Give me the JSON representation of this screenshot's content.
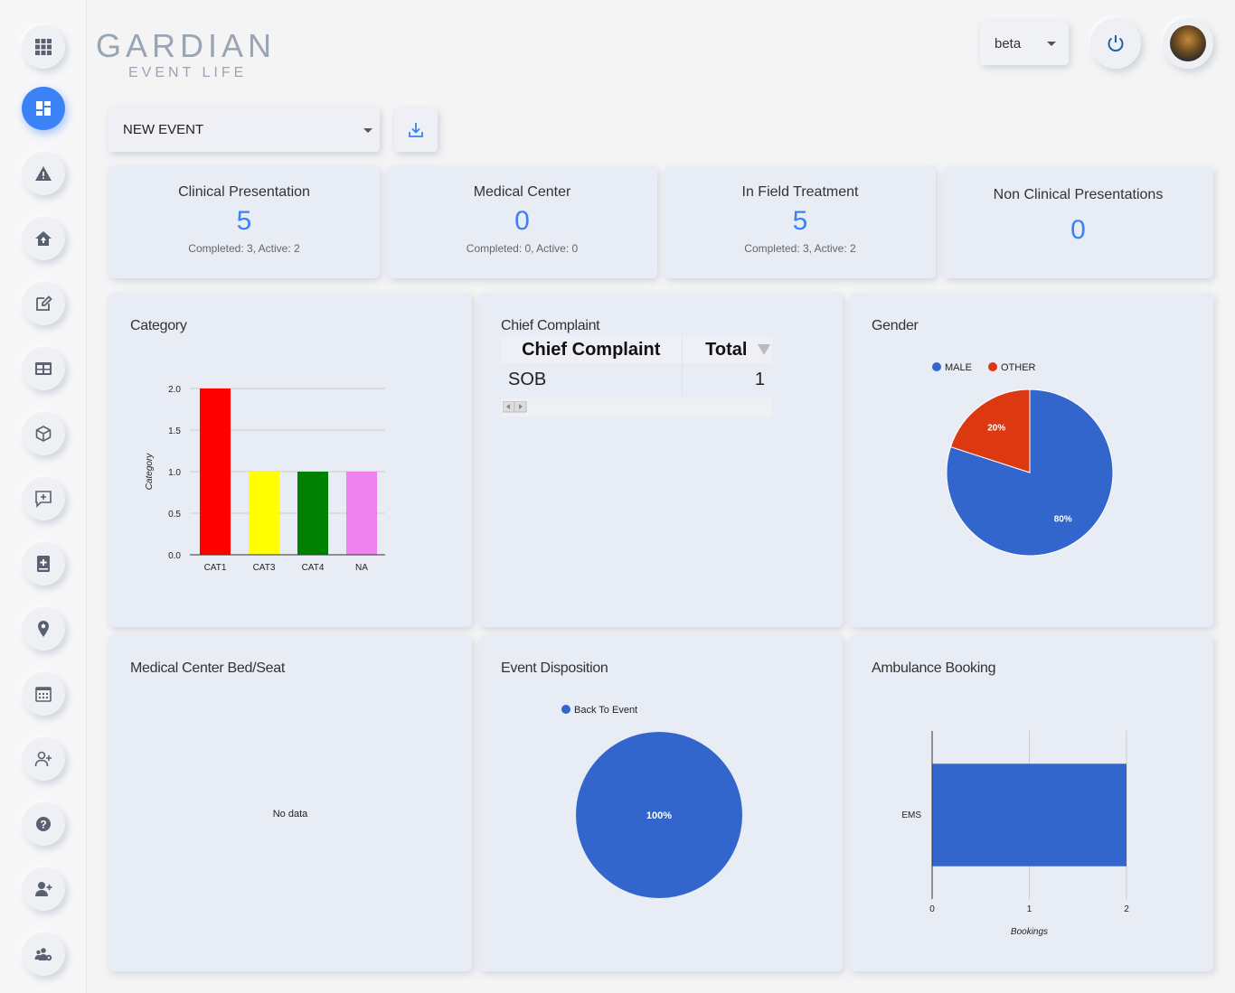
{
  "logo": {
    "main": "GARDIAN",
    "sub": "EVENT LIFE"
  },
  "header": {
    "beta_label": "beta"
  },
  "event_select": {
    "value": "NEW EVENT"
  },
  "sidebar": {
    "items": [
      {
        "icon": "apps-grid-icon"
      },
      {
        "icon": "dashboard-icon"
      },
      {
        "icon": "warning-icon"
      },
      {
        "icon": "home-upload-icon"
      },
      {
        "icon": "edit-icon"
      },
      {
        "icon": "table-icon"
      },
      {
        "icon": "box-icon"
      },
      {
        "icon": "feedback-icon"
      },
      {
        "icon": "medical-book-icon"
      },
      {
        "icon": "location-pin-icon"
      },
      {
        "icon": "calendar-icon"
      },
      {
        "icon": "add-user-outline-icon"
      },
      {
        "icon": "help-icon"
      },
      {
        "icon": "add-user-icon"
      },
      {
        "icon": "group-settings-icon"
      }
    ]
  },
  "stats": [
    {
      "title": "Clinical Presentation",
      "value": "5",
      "sub": "Completed: 3, Active: 2"
    },
    {
      "title": "Medical Center",
      "value": "0",
      "sub": "Completed: 0, Active: 0"
    },
    {
      "title": "In Field Treatment",
      "value": "5",
      "sub": "Completed: 3, Active: 2"
    },
    {
      "title": "Non Clinical Presentations",
      "value": "0",
      "sub": ""
    }
  ],
  "panels": {
    "category": "Category",
    "chief_complaint": "Chief Complaint",
    "gender": "Gender",
    "bed_seat": "Medical Center Bed/Seat",
    "disposition": "Event Disposition",
    "ambulance": "Ambulance Booking"
  },
  "chief_complaint_table": {
    "headers": [
      "Chief Complaint",
      "Total"
    ],
    "rows": [
      [
        "SOB",
        "1"
      ]
    ]
  },
  "bed_seat_empty": "No data",
  "colors": {
    "accent": "#3b82f6",
    "series_blue": "#3366cc",
    "series_red": "#dc3912"
  },
  "chart_data": [
    {
      "type": "bar",
      "title": "",
      "categories": [
        "CAT1",
        "CAT3",
        "CAT4",
        "NA"
      ],
      "values": [
        2,
        1,
        1,
        1
      ],
      "colors": [
        "#ff0000",
        "#ffff00",
        "#008000",
        "#ee82ee"
      ],
      "ylabel": "Category",
      "ylim": [
        0,
        2
      ],
      "yticks": [
        "0.0",
        "0.5",
        "1.0",
        "1.5",
        "2.0"
      ]
    },
    {
      "type": "pie",
      "legend": [
        "MALE",
        "OTHER"
      ],
      "values": [
        80,
        20
      ],
      "labels": [
        "80%",
        "20%"
      ],
      "colors": [
        "#3366cc",
        "#dc3912"
      ]
    },
    {
      "type": "pie",
      "legend": [
        "Back To Event"
      ],
      "values": [
        100
      ],
      "labels": [
        "100%"
      ],
      "colors": [
        "#3366cc"
      ]
    },
    {
      "type": "bar",
      "orientation": "horizontal",
      "categories": [
        "EMS"
      ],
      "values": [
        2
      ],
      "xlabel": "Bookings",
      "xlim": [
        0,
        2
      ],
      "xticks": [
        "0",
        "1",
        "2"
      ],
      "colors": [
        "#3366cc"
      ]
    }
  ]
}
